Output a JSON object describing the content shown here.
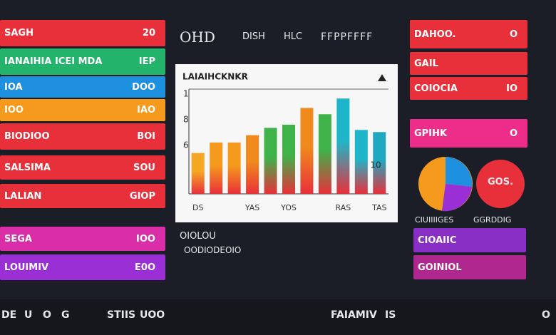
{
  "header": {
    "brand": "OHD",
    "tabs": [
      "DISH",
      "HLC"
    ],
    "right_label": "FFPPFFFF"
  },
  "left_rows": [
    {
      "label": "SAGH",
      "value": "20",
      "color": "#e8303a"
    },
    {
      "label": "IANAIHIA ICEI MDA",
      "value": "IEP",
      "color": "#23b36a"
    },
    {
      "label": "IOA",
      "value": "DOO",
      "color": "#1f8fe0"
    },
    {
      "label": "IOO",
      "value": "IAO",
      "color": "#f59a1c"
    },
    {
      "label": "BIODIOO",
      "value": "BOI",
      "color": "#e8303a"
    },
    {
      "label": "SALSIMA",
      "value": "SOU",
      "color": "#e8303a"
    },
    {
      "label": "LALIAN",
      "value": "GIOP",
      "color": "#e8303a"
    },
    {
      "label": "SEGA",
      "value": "IOO",
      "color": "#d92ea8"
    },
    {
      "label": "LOUIMIV",
      "value": "E0O",
      "color": "#9b2fd6"
    }
  ],
  "chart": {
    "type": "bar",
    "title": "LAIAIHCKNKR",
    "side_labels": [
      "1",
      "8",
      "6"
    ],
    "categories": [
      "DS",
      null,
      null,
      "YAS",
      null,
      "YOS",
      null,
      null,
      "RAS",
      null,
      "TAS"
    ],
    "values": [
      39,
      49,
      49,
      56,
      63,
      66,
      82,
      76,
      91,
      61,
      59
    ],
    "colors": [
      "#f5a623",
      "#f59a1c",
      "#f59a1c",
      "#f08a1c",
      "#3fb24a",
      "#3fb24a",
      "#f08a1c",
      "#3fb24a",
      "#1fb5c8",
      "#1fb5c8",
      "#1fa8c0"
    ],
    "base_color": "#e8303a",
    "ylim": [
      0,
      100
    ],
    "value_note": "10"
  },
  "center_bottom": {
    "line1": "OIOLOU",
    "line2": "OODIODEOIO"
  },
  "right_rows": [
    {
      "label": "DAHOO.",
      "value": "O",
      "color": "#e8303a"
    },
    {
      "label": "GAIL",
      "value": "",
      "color": "#e8303a"
    },
    {
      "label": "COIOCIA",
      "value": "IO",
      "color": "#e8303a"
    },
    {
      "label": "GPIHK",
      "value": "O",
      "color": "#ee2d8a"
    }
  ],
  "right_badge": "GOS.",
  "right_captions": [
    "CIUIIIIGES",
    "GGRDDIG"
  ],
  "right_lower_rows": [
    {
      "label": "CIOAIIC",
      "color": "#8a2fc6"
    },
    {
      "label": "GOINIOL",
      "color": "#b0278f"
    }
  ],
  "footer": [
    "DE",
    "U",
    "O",
    "G",
    "STIIS",
    "UOO",
    "FAIAMIV",
    "IS",
    "O"
  ]
}
